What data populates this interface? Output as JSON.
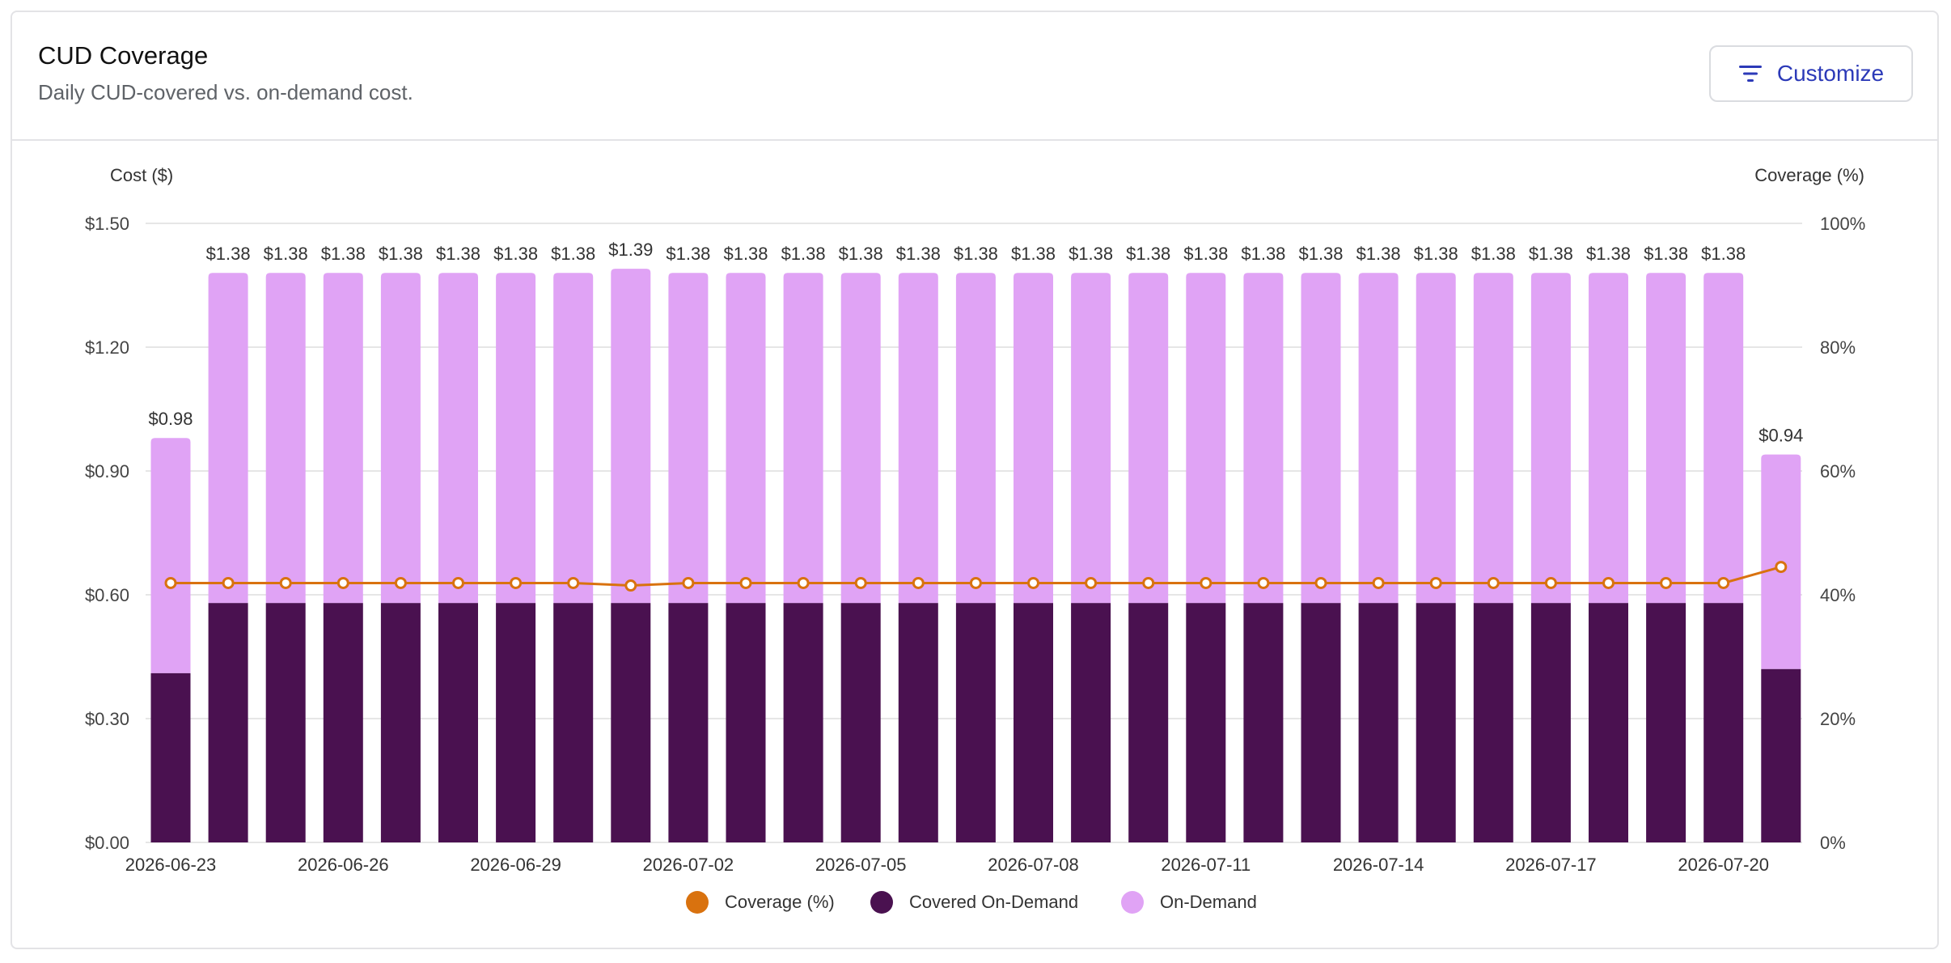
{
  "header": {
    "title": "CUD Coverage",
    "subtitle": "Daily CUD-covered vs. on-demand cost.",
    "customize_label": "Customize"
  },
  "colors": {
    "covered": "#4a1150",
    "on_demand": "#e0a3f5",
    "coverage_line": "#d9720f",
    "grid": "#e6e6e6"
  },
  "chart_data": {
    "type": "bar",
    "stacked": true,
    "title": "",
    "ylabel": "Cost ($)",
    "y2label": "Coverage (%)",
    "ylim": [
      0,
      1.5
    ],
    "y2lim": [
      0,
      100
    ],
    "yticks": [
      "$0.00",
      "$0.30",
      "$0.60",
      "$0.90",
      "$1.20",
      "$1.50"
    ],
    "y2ticks": [
      "0%",
      "20%",
      "40%",
      "60%",
      "80%",
      "100%"
    ],
    "grid": true,
    "legend_position": "bottom",
    "categories": [
      "2026-06-23",
      "2026-06-24",
      "2026-06-25",
      "2026-06-26",
      "2026-06-27",
      "2026-06-28",
      "2026-06-29",
      "2026-06-30",
      "2026-07-01",
      "2026-07-02",
      "2026-07-03",
      "2026-07-04",
      "2026-07-05",
      "2026-07-06",
      "2026-07-07",
      "2026-07-08",
      "2026-07-09",
      "2026-07-10",
      "2026-07-11",
      "2026-07-12",
      "2026-07-13",
      "2026-07-14",
      "2026-07-15",
      "2026-07-16",
      "2026-07-17",
      "2026-07-18",
      "2026-07-19",
      "2026-07-20",
      "2026-07-21"
    ],
    "x_tick_labels": [
      "2026-06-23",
      "2026-06-26",
      "2026-06-29",
      "2026-07-02",
      "2026-07-05",
      "2026-07-08",
      "2026-07-11",
      "2026-07-14",
      "2026-07-17",
      "2026-07-20"
    ],
    "series": [
      {
        "name": "Covered On-Demand",
        "kind": "bar",
        "values": [
          0.41,
          0.58,
          0.58,
          0.58,
          0.58,
          0.58,
          0.58,
          0.58,
          0.58,
          0.58,
          0.58,
          0.58,
          0.58,
          0.58,
          0.58,
          0.58,
          0.58,
          0.58,
          0.58,
          0.58,
          0.58,
          0.58,
          0.58,
          0.58,
          0.58,
          0.58,
          0.58,
          0.58,
          0.42
        ]
      },
      {
        "name": "On-Demand",
        "kind": "bar",
        "values": [
          0.57,
          0.8,
          0.8,
          0.8,
          0.8,
          0.8,
          0.8,
          0.8,
          0.81,
          0.8,
          0.8,
          0.8,
          0.8,
          0.8,
          0.8,
          0.8,
          0.8,
          0.8,
          0.8,
          0.8,
          0.8,
          0.8,
          0.8,
          0.8,
          0.8,
          0.8,
          0.8,
          0.8,
          0.52
        ]
      },
      {
        "name": "Coverage (%)",
        "kind": "line",
        "axis": "right",
        "values": [
          41.9,
          41.9,
          41.9,
          41.9,
          41.9,
          41.9,
          41.9,
          41.9,
          41.5,
          41.9,
          41.9,
          41.9,
          41.9,
          41.9,
          41.9,
          41.9,
          41.9,
          41.9,
          41.9,
          41.9,
          41.9,
          41.9,
          41.9,
          41.9,
          41.9,
          41.9,
          41.9,
          41.9,
          44.5
        ]
      }
    ],
    "total_labels": [
      "$0.98",
      "$1.38",
      "$1.38",
      "$1.38",
      "$1.38",
      "$1.38",
      "$1.38",
      "$1.38",
      "$1.39",
      "$1.38",
      "$1.38",
      "$1.38",
      "$1.38",
      "$1.38",
      "$1.38",
      "$1.38",
      "$1.38",
      "$1.38",
      "$1.38",
      "$1.38",
      "$1.38",
      "$1.38",
      "$1.38",
      "$1.38",
      "$1.38",
      "$1.38",
      "$1.38",
      "$1.38",
      "$0.94"
    ],
    "legend": [
      "Coverage (%)",
      "Covered On-Demand",
      "On-Demand"
    ]
  }
}
